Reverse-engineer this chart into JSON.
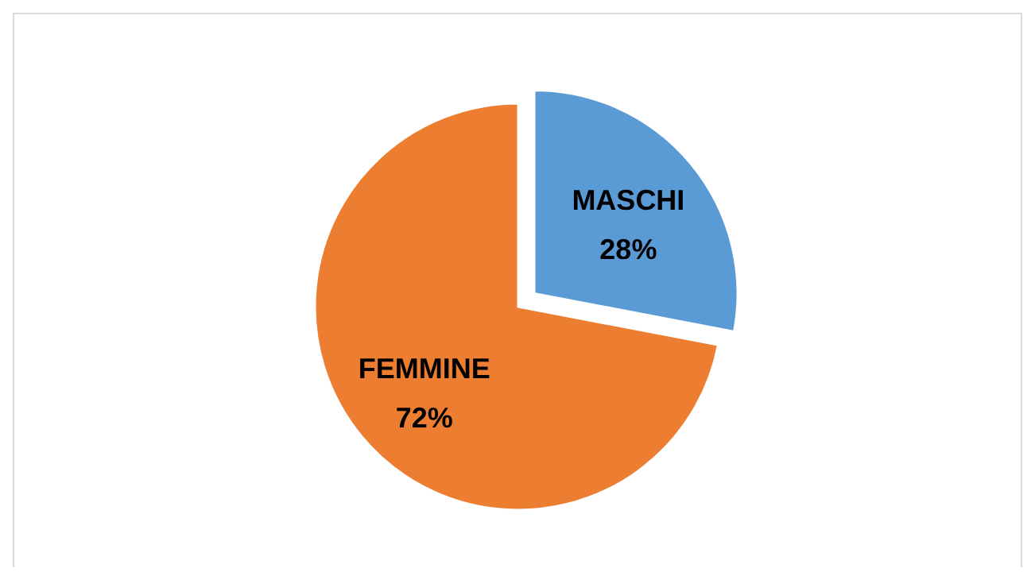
{
  "chart_data": {
    "type": "pie",
    "categories": [
      "MASCHI",
      "FEMMINE"
    ],
    "values": [
      28,
      72
    ],
    "colors": [
      "#5b9bd5",
      "#ed7d31"
    ],
    "value_labels": [
      "28%",
      "72%"
    ]
  }
}
